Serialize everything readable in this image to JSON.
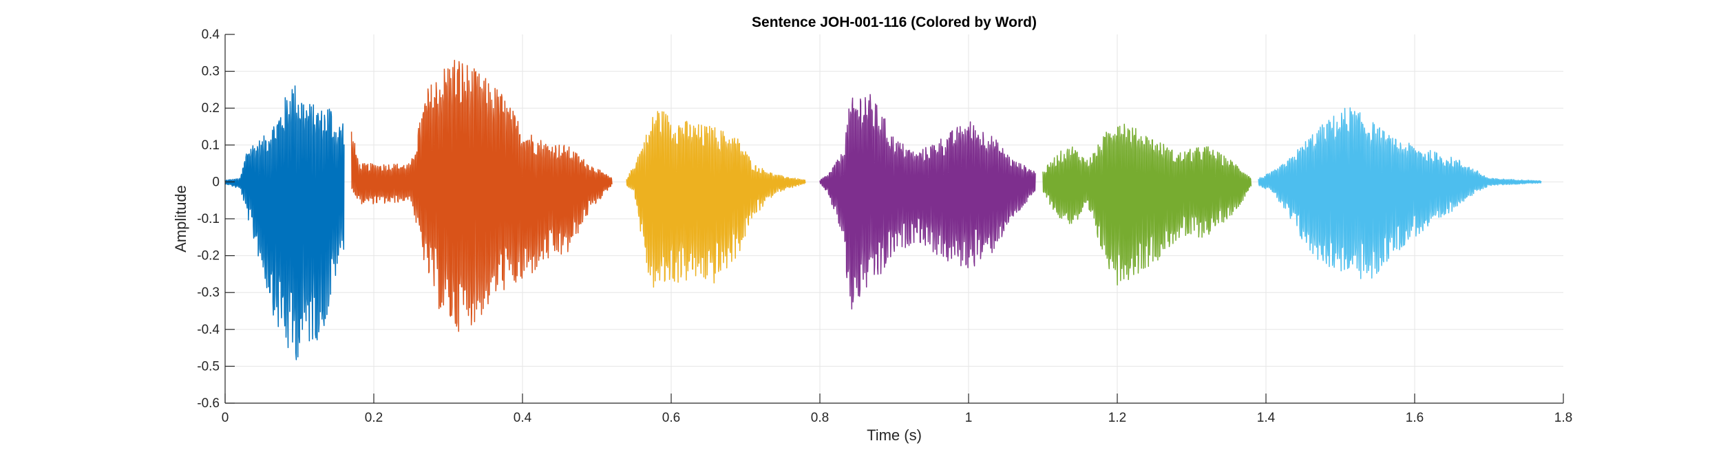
{
  "chart_data": {
    "type": "line",
    "title": "Sentence JOH-001-116 (Colored by Word)",
    "xlabel": "Time (s)",
    "ylabel": "Amplitude",
    "xlim": [
      0,
      1.8
    ],
    "ylim": [
      -0.6,
      0.4
    ],
    "xticks": [
      0,
      0.2,
      0.4,
      0.6,
      0.8,
      1,
      1.2,
      1.4,
      1.6,
      1.8
    ],
    "xtick_labels": [
      "0",
      "0.2",
      "0.4",
      "0.6",
      "0.8",
      "1",
      "1.2",
      "1.4",
      "1.6",
      "1.8"
    ],
    "yticks": [
      0.4,
      0.3,
      0.2,
      0.1,
      0,
      -0.1,
      -0.2,
      -0.3,
      -0.4,
      -0.5,
      -0.6
    ],
    "ytick_labels": [
      "0.4",
      "0.3",
      "0.2",
      "0.1",
      "0",
      "-0.1",
      "-0.2",
      "-0.3",
      "-0.4",
      "-0.5",
      "-0.6"
    ],
    "grid": true,
    "legend": "none",
    "series": [
      {
        "color": "#0072BD",
        "x_range": [
          0.0,
          0.16
        ],
        "envelope": [
          {
            "t": 0.0,
            "max": 0.005,
            "min": -0.005
          },
          {
            "t": 0.02,
            "max": 0.01,
            "min": -0.02
          },
          {
            "t": 0.03,
            "max": 0.1,
            "min": -0.1
          },
          {
            "t": 0.05,
            "max": 0.12,
            "min": -0.25
          },
          {
            "t": 0.07,
            "max": 0.18,
            "min": -0.4
          },
          {
            "t": 0.09,
            "max": 0.28,
            "min": -0.5
          },
          {
            "t": 0.11,
            "max": 0.22,
            "min": -0.45
          },
          {
            "t": 0.13,
            "max": 0.2,
            "min": -0.42
          },
          {
            "t": 0.14,
            "max": 0.22,
            "min": -0.35
          },
          {
            "t": 0.15,
            "max": 0.15,
            "min": -0.25
          },
          {
            "t": 0.16,
            "max": 0.18,
            "min": -0.18
          }
        ]
      },
      {
        "color": "#D95319",
        "x_range": [
          0.17,
          0.52
        ],
        "envelope": [
          {
            "t": 0.17,
            "max": 0.15,
            "min": -0.02
          },
          {
            "t": 0.18,
            "max": 0.05,
            "min": -0.06
          },
          {
            "t": 0.22,
            "max": 0.05,
            "min": -0.06
          },
          {
            "t": 0.25,
            "max": 0.05,
            "min": -0.05
          },
          {
            "t": 0.27,
            "max": 0.25,
            "min": -0.25
          },
          {
            "t": 0.29,
            "max": 0.31,
            "min": -0.36
          },
          {
            "t": 0.31,
            "max": 0.35,
            "min": -0.41
          },
          {
            "t": 0.34,
            "max": 0.3,
            "min": -0.38
          },
          {
            "t": 0.37,
            "max": 0.25,
            "min": -0.3
          },
          {
            "t": 0.4,
            "max": 0.15,
            "min": -0.28
          },
          {
            "t": 0.43,
            "max": 0.11,
            "min": -0.22
          },
          {
            "t": 0.46,
            "max": 0.1,
            "min": -0.2
          },
          {
            "t": 0.49,
            "max": 0.05,
            "min": -0.08
          },
          {
            "t": 0.52,
            "max": 0.01,
            "min": -0.01
          }
        ]
      },
      {
        "color": "#EDB120",
        "x_range": [
          0.54,
          0.78
        ],
        "envelope": [
          {
            "t": 0.54,
            "max": 0.01,
            "min": -0.01
          },
          {
            "t": 0.55,
            "max": 0.05,
            "min": -0.03
          },
          {
            "t": 0.57,
            "max": 0.15,
            "min": -0.28
          },
          {
            "t": 0.58,
            "max": 0.21,
            "min": -0.3
          },
          {
            "t": 0.6,
            "max": 0.18,
            "min": -0.28
          },
          {
            "t": 0.63,
            "max": 0.16,
            "min": -0.27
          },
          {
            "t": 0.66,
            "max": 0.15,
            "min": -0.28
          },
          {
            "t": 0.69,
            "max": 0.12,
            "min": -0.2
          },
          {
            "t": 0.71,
            "max": 0.05,
            "min": -0.1
          },
          {
            "t": 0.74,
            "max": 0.02,
            "min": -0.03
          },
          {
            "t": 0.78,
            "max": 0.005,
            "min": -0.005
          }
        ]
      },
      {
        "color": "#7E2F8E",
        "x_range": [
          0.8,
          1.09
        ],
        "envelope": [
          {
            "t": 0.8,
            "max": 0.005,
            "min": -0.005
          },
          {
            "t": 0.81,
            "max": 0.02,
            "min": -0.03
          },
          {
            "t": 0.83,
            "max": 0.08,
            "min": -0.15
          },
          {
            "t": 0.84,
            "max": 0.22,
            "min": -0.37
          },
          {
            "t": 0.86,
            "max": 0.26,
            "min": -0.3
          },
          {
            "t": 0.88,
            "max": 0.2,
            "min": -0.27
          },
          {
            "t": 0.9,
            "max": 0.12,
            "min": -0.2
          },
          {
            "t": 0.93,
            "max": 0.08,
            "min": -0.16
          },
          {
            "t": 0.97,
            "max": 0.13,
            "min": -0.22
          },
          {
            "t": 1.0,
            "max": 0.17,
            "min": -0.24
          },
          {
            "t": 1.03,
            "max": 0.13,
            "min": -0.2
          },
          {
            "t": 1.06,
            "max": 0.06,
            "min": -0.1
          },
          {
            "t": 1.09,
            "max": 0.03,
            "min": -0.03
          }
        ]
      },
      {
        "color": "#77AC30",
        "x_range": [
          1.1,
          1.38
        ],
        "envelope": [
          {
            "t": 1.1,
            "max": 0.03,
            "min": -0.03
          },
          {
            "t": 1.12,
            "max": 0.08,
            "min": -0.1
          },
          {
            "t": 1.14,
            "max": 0.1,
            "min": -0.12
          },
          {
            "t": 1.16,
            "max": 0.06,
            "min": -0.08
          },
          {
            "t": 1.18,
            "max": 0.12,
            "min": -0.2
          },
          {
            "t": 1.2,
            "max": 0.19,
            "min": -0.28
          },
          {
            "t": 1.22,
            "max": 0.15,
            "min": -0.26
          },
          {
            "t": 1.25,
            "max": 0.12,
            "min": -0.22
          },
          {
            "t": 1.28,
            "max": 0.08,
            "min": -0.16
          },
          {
            "t": 1.32,
            "max": 0.1,
            "min": -0.15
          },
          {
            "t": 1.36,
            "max": 0.05,
            "min": -0.08
          },
          {
            "t": 1.38,
            "max": 0.01,
            "min": -0.01
          }
        ]
      },
      {
        "color": "#4DBEEE",
        "x_range": [
          1.39,
          1.77
        ],
        "envelope": [
          {
            "t": 1.39,
            "max": 0.01,
            "min": -0.01
          },
          {
            "t": 1.41,
            "max": 0.03,
            "min": -0.03
          },
          {
            "t": 1.43,
            "max": 0.06,
            "min": -0.1
          },
          {
            "t": 1.46,
            "max": 0.13,
            "min": -0.2
          },
          {
            "t": 1.49,
            "max": 0.18,
            "min": -0.24
          },
          {
            "t": 1.51,
            "max": 0.21,
            "min": -0.25
          },
          {
            "t": 1.54,
            "max": 0.17,
            "min": -0.28
          },
          {
            "t": 1.57,
            "max": 0.12,
            "min": -0.2
          },
          {
            "t": 1.6,
            "max": 0.1,
            "min": -0.15
          },
          {
            "t": 1.63,
            "max": 0.08,
            "min": -0.12
          },
          {
            "t": 1.66,
            "max": 0.06,
            "min": -0.06
          },
          {
            "t": 1.7,
            "max": 0.01,
            "min": -0.01
          },
          {
            "t": 1.77,
            "max": 0.003,
            "min": -0.003
          }
        ]
      }
    ]
  }
}
